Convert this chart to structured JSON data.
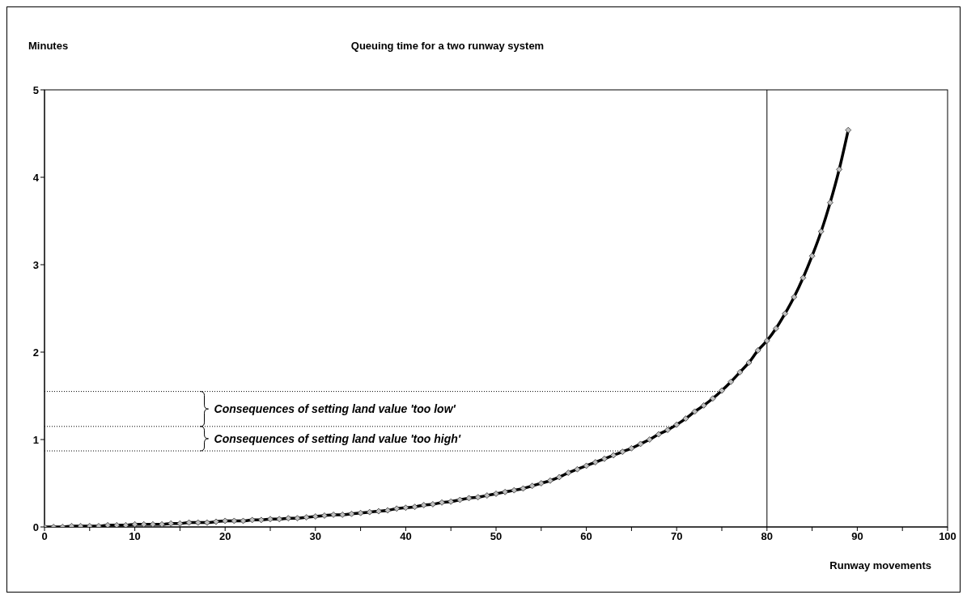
{
  "chart_data": {
    "type": "line",
    "title": "Queuing time for a two runway system",
    "xlabel": "Runway movements",
    "ylabel": "Minutes",
    "x": [
      0,
      1,
      2,
      3,
      4,
      5,
      6,
      7,
      8,
      9,
      10,
      11,
      12,
      13,
      14,
      15,
      16,
      17,
      18,
      19,
      20,
      21,
      22,
      23,
      24,
      25,
      26,
      27,
      28,
      29,
      30,
      31,
      32,
      33,
      34,
      35,
      36,
      37,
      38,
      39,
      40,
      41,
      42,
      43,
      44,
      45,
      46,
      47,
      48,
      49,
      50,
      51,
      52,
      53,
      54,
      55,
      56,
      57,
      58,
      59,
      60,
      61,
      62,
      63,
      64,
      65,
      66,
      67,
      68,
      69,
      70,
      71,
      72,
      73,
      74,
      75,
      76,
      77,
      78,
      79,
      80,
      81,
      82,
      83,
      84,
      85,
      86,
      87,
      88,
      89
    ],
    "series": [
      {
        "color": "#000000",
        "values": [
          0,
          0,
          0,
          0.01,
          0.01,
          0.01,
          0.01,
          0.02,
          0.02,
          0.02,
          0.03,
          0.03,
          0.03,
          0.03,
          0.04,
          0.04,
          0.05,
          0.05,
          0.05,
          0.06,
          0.07,
          0.07,
          0.07,
          0.08,
          0.08,
          0.09,
          0.09,
          0.1,
          0.1,
          0.11,
          0.12,
          0.13,
          0.14,
          0.14,
          0.15,
          0.16,
          0.17,
          0.18,
          0.19,
          0.21,
          0.22,
          0.23,
          0.25,
          0.26,
          0.28,
          0.29,
          0.31,
          0.33,
          0.34,
          0.36,
          0.38,
          0.4,
          0.42,
          0.44,
          0.47,
          0.5,
          0.53,
          0.57,
          0.62,
          0.66,
          0.7,
          0.74,
          0.78,
          0.82,
          0.86,
          0.9,
          0.95,
          1.0,
          1.06,
          1.11,
          1.17,
          1.24,
          1.32,
          1.39,
          1.47,
          1.56,
          1.66,
          1.77,
          1.88,
          2.02,
          2.13,
          2.27,
          2.44,
          2.63,
          2.85,
          3.1,
          3.38,
          3.71,
          4.09,
          4.54
        ]
      }
    ],
    "xlim": [
      0,
      100
    ],
    "ylim": [
      0,
      5
    ],
    "xticks": [
      0,
      {
        "value": 5,
        "label": null
      },
      10,
      {
        "value": 15,
        "label": null
      },
      20,
      {
        "value": 25,
        "label": null
      },
      30,
      {
        "value": 35,
        "label": null
      },
      40,
      {
        "value": 45,
        "label": null
      },
      50,
      {
        "value": 55,
        "label": null
      },
      60,
      {
        "value": 65,
        "label": null
      },
      70,
      {
        "value": 75,
        "label": null
      },
      80,
      {
        "value": 85,
        "label": null
      },
      90,
      {
        "value": 95,
        "label": null
      },
      100
    ],
    "yticks": [
      0,
      1,
      2,
      3,
      4,
      5
    ],
    "grid": false,
    "legend": false,
    "marker": "diamond",
    "line_style": "solid",
    "ref_lines": [
      {
        "axis": "x",
        "value": 80,
        "line_style": "solid",
        "color": "#000000"
      },
      {
        "axis": "y",
        "value": 1.55,
        "line_style": "dotted",
        "color": "#000000"
      },
      {
        "axis": "y",
        "value": 1.15,
        "line_style": "dotted",
        "color": "#000000"
      },
      {
        "axis": "y",
        "value": 0.87,
        "line_style": "dotted",
        "color": "#000000"
      }
    ],
    "annotations": [
      "Consequences of setting land value 'too low'",
      "Consequences of setting land value 'too high'"
    ]
  }
}
